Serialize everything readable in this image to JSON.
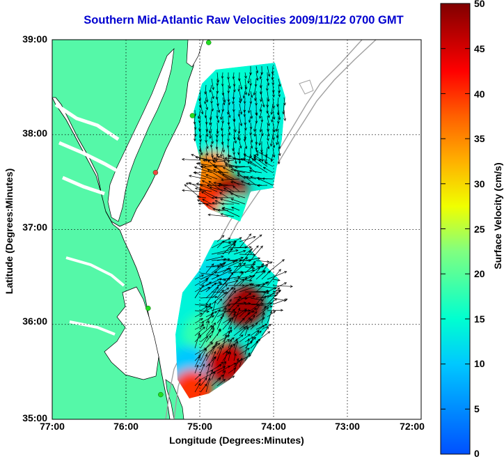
{
  "title": "Southern Mid-Atlantic Raw Velocities 2009/11/22 0700 GMT",
  "xlabel": "Longitude (Degrees:Minutes)",
  "ylabel": "Latitude (Degrees:Minutes)",
  "colorbar": {
    "label": "Surface Velocity (cm/s)",
    "ticks": [
      "0",
      "5",
      "10",
      "15",
      "20",
      "25",
      "30",
      "35",
      "40",
      "45",
      "50"
    ],
    "min": 0,
    "max": 50
  },
  "x_ticks": [
    "77:00",
    "76:00",
    "75:00",
    "74:00",
    "73:00",
    "72:00"
  ],
  "y_ticks": [
    "39:00",
    "38:00",
    "37:00",
    "36:00",
    "35:00"
  ],
  "colors": {
    "land": "#55f8a8",
    "water": "#ffffff",
    "bathymetry": "#a0a0a0",
    "title": "#0000d0",
    "station": "#22dd22",
    "station_alt": "#ee4444"
  },
  "chart_data": {
    "type": "heatmap",
    "x_range_deg": [
      -77,
      -72
    ],
    "y_range_deg": [
      35,
      39
    ],
    "value_units": "cm/s",
    "regions": [
      {
        "lon": -74.55,
        "lat": 38.55,
        "speed": 15
      },
      {
        "lon": -74.5,
        "lat": 38.25,
        "speed": 13
      },
      {
        "lon": -74.65,
        "lat": 37.95,
        "speed": 14
      },
      {
        "lon": -74.85,
        "lat": 37.6,
        "speed": 35
      },
      {
        "lon": -74.6,
        "lat": 37.35,
        "speed": 48
      },
      {
        "lon": -74.95,
        "lat": 37.25,
        "speed": 40
      },
      {
        "lon": -74.5,
        "lat": 37.15,
        "speed": 15
      },
      {
        "lon": -74.8,
        "lat": 36.5,
        "speed": 12
      },
      {
        "lon": -74.4,
        "lat": 36.2,
        "speed": 48
      },
      {
        "lon": -74.95,
        "lat": 35.9,
        "speed": 18
      },
      {
        "lon": -75.15,
        "lat": 35.55,
        "speed": 10
      },
      {
        "lon": -74.65,
        "lat": 35.6,
        "speed": 46
      },
      {
        "lon": -75.1,
        "lat": 35.3,
        "speed": 40
      }
    ],
    "stations": [
      {
        "lon": -74.88,
        "lat": 38.97,
        "color": "green"
      },
      {
        "lon": -75.1,
        "lat": 38.2,
        "color": "green"
      },
      {
        "lon": -75.6,
        "lat": 37.6,
        "color": "red"
      },
      {
        "lon": -75.7,
        "lat": 36.17,
        "color": "green"
      },
      {
        "lon": -75.53,
        "lat": 35.26,
        "color": "green"
      }
    ]
  }
}
